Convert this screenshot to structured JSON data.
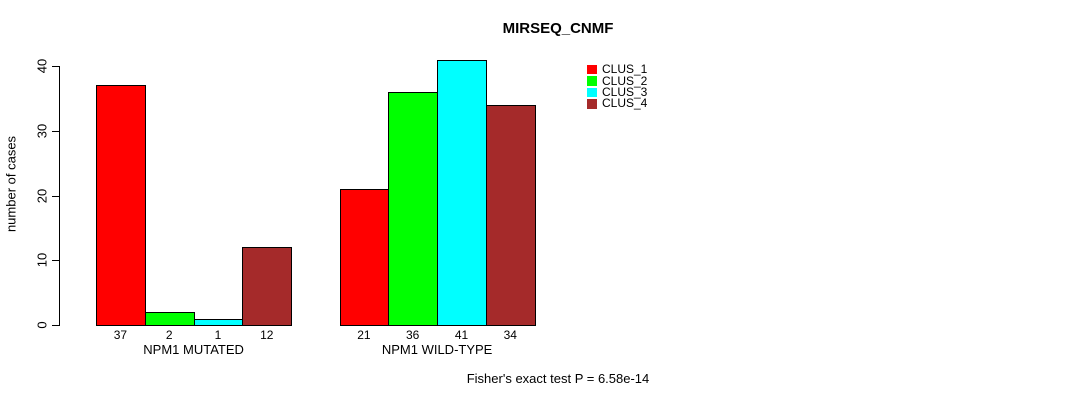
{
  "title": "MIRSEQ_CNMF",
  "y_axis": {
    "label": "number of cases",
    "ticks": [
      0,
      10,
      20,
      30,
      40
    ]
  },
  "footer": "Fisher's exact test P = 6.58e-14",
  "legend": {
    "entries": [
      {
        "label": "CLUS_1",
        "color": "#FF0000"
      },
      {
        "label": "CLUS_2",
        "color": "#00FF00"
      },
      {
        "label": "CLUS_3",
        "color": "#00FFFF"
      },
      {
        "label": "CLUS_4",
        "color": "#A52A2A"
      }
    ]
  },
  "chart_data": {
    "type": "bar",
    "title": "MIRSEQ_CNMF",
    "categories": [
      "NPM1 MUTATED",
      "NPM1 WILD-TYPE"
    ],
    "series": [
      {
        "name": "CLUS_1",
        "color": "#FF0000",
        "values": [
          37,
          21
        ]
      },
      {
        "name": "CLUS_2",
        "color": "#00FF00",
        "values": [
          2,
          36
        ]
      },
      {
        "name": "CLUS_3",
        "color": "#00FFFF",
        "values": [
          1,
          41
        ]
      },
      {
        "name": "CLUS_4",
        "color": "#A52A2A",
        "values": [
          12,
          34
        ]
      }
    ],
    "xlabel": "",
    "ylabel": "number of cases",
    "ylim": [
      0,
      40
    ],
    "yticks": [
      0,
      10,
      20,
      30,
      40
    ],
    "grid": false,
    "legend_position": "top-right",
    "bar_value_labels": true,
    "annotation": "Fisher's exact test P = 6.58e-14"
  }
}
